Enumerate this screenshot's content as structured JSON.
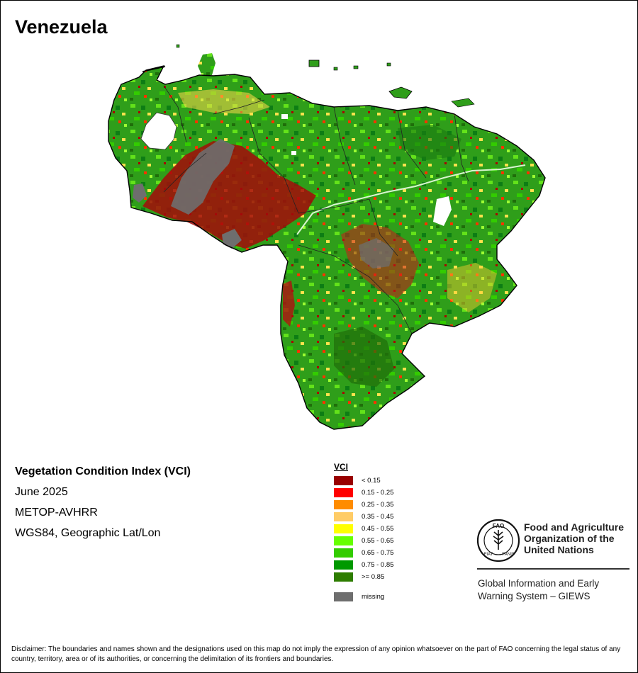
{
  "map": {
    "title": "Venezuela",
    "subtitle": "Vegetation Condition Index (VCI)",
    "date": "June 2025",
    "sensor": "METOP-AVHRR",
    "projection": "WGS84, Geographic Lat/Lon"
  },
  "legend": {
    "title": "VCI",
    "classes": [
      {
        "label": "< 0.15",
        "color": "#990000"
      },
      {
        "label": "0.15 - 0.25",
        "color": "#ff0000"
      },
      {
        "label": "0.25 - 0.35",
        "color": "#ff8c00"
      },
      {
        "label": "0.35 - 0.45",
        "color": "#ffcc66"
      },
      {
        "label": "0.45 - 0.55",
        "color": "#ffff00"
      },
      {
        "label": "0.55 - 0.65",
        "color": "#66ff00"
      },
      {
        "label": "0.65 - 0.75",
        "color": "#33cc00"
      },
      {
        "label": "0.75 - 0.85",
        "color": "#009900"
      },
      {
        "label": ">= 0.85",
        "color": "#2e7d00"
      }
    ],
    "missing": {
      "label": "missing",
      "color": "#6e6e6e"
    }
  },
  "org": {
    "name_lines": [
      "Food and Agriculture",
      "Organization of the",
      "United Nations"
    ],
    "logo_text": {
      "top": "FAO",
      "fiat": "FIAT",
      "panis": "PANIS"
    },
    "system_lines": [
      "Global Information and Early",
      "Warning System – GIEWS"
    ]
  },
  "disclaimer": "Disclaimer: The boundaries and names shown and the designations used on this map do not imply the expression of any opinion whatsoever on the part of FAO concerning the legal status of any country, territory, area or of its authorities, or concerning the delimitation of its frontiers and boundaries."
}
